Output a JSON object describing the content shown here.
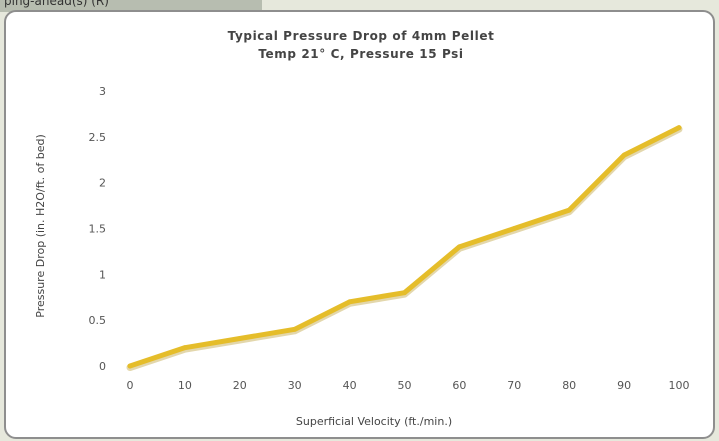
{
  "page_header_fragment": "ping-ahead(s) (R)",
  "chart_data": {
    "type": "line",
    "title": "Typical Pressure Drop of 4mm Pellet",
    "subtitle": "Temp 21° C, Pressure 15 Psi",
    "xlabel": "Superficial Velocity (ft./min.)",
    "ylabel": "Pressure Drop (in. H2O/ft. of bed)",
    "x": [
      0,
      10,
      20,
      30,
      40,
      50,
      60,
      70,
      80,
      90,
      100
    ],
    "x_tick_labels": [
      "0",
      "10",
      "20",
      "30",
      "40",
      "50",
      "60",
      "70",
      "80",
      "90",
      "100"
    ],
    "y_tick_labels": [
      "0",
      "0.5",
      "1",
      "1.5",
      "2",
      "2.5",
      "3"
    ],
    "xlim": [
      0,
      100
    ],
    "ylim": [
      0,
      3
    ],
    "grid": false,
    "series": [
      {
        "values": [
          0,
          0.2,
          0.3,
          0.4,
          0.7,
          0.8,
          1.3,
          1.5,
          1.7,
          2.3,
          2.6
        ],
        "color": "#e5bd2a"
      }
    ]
  }
}
